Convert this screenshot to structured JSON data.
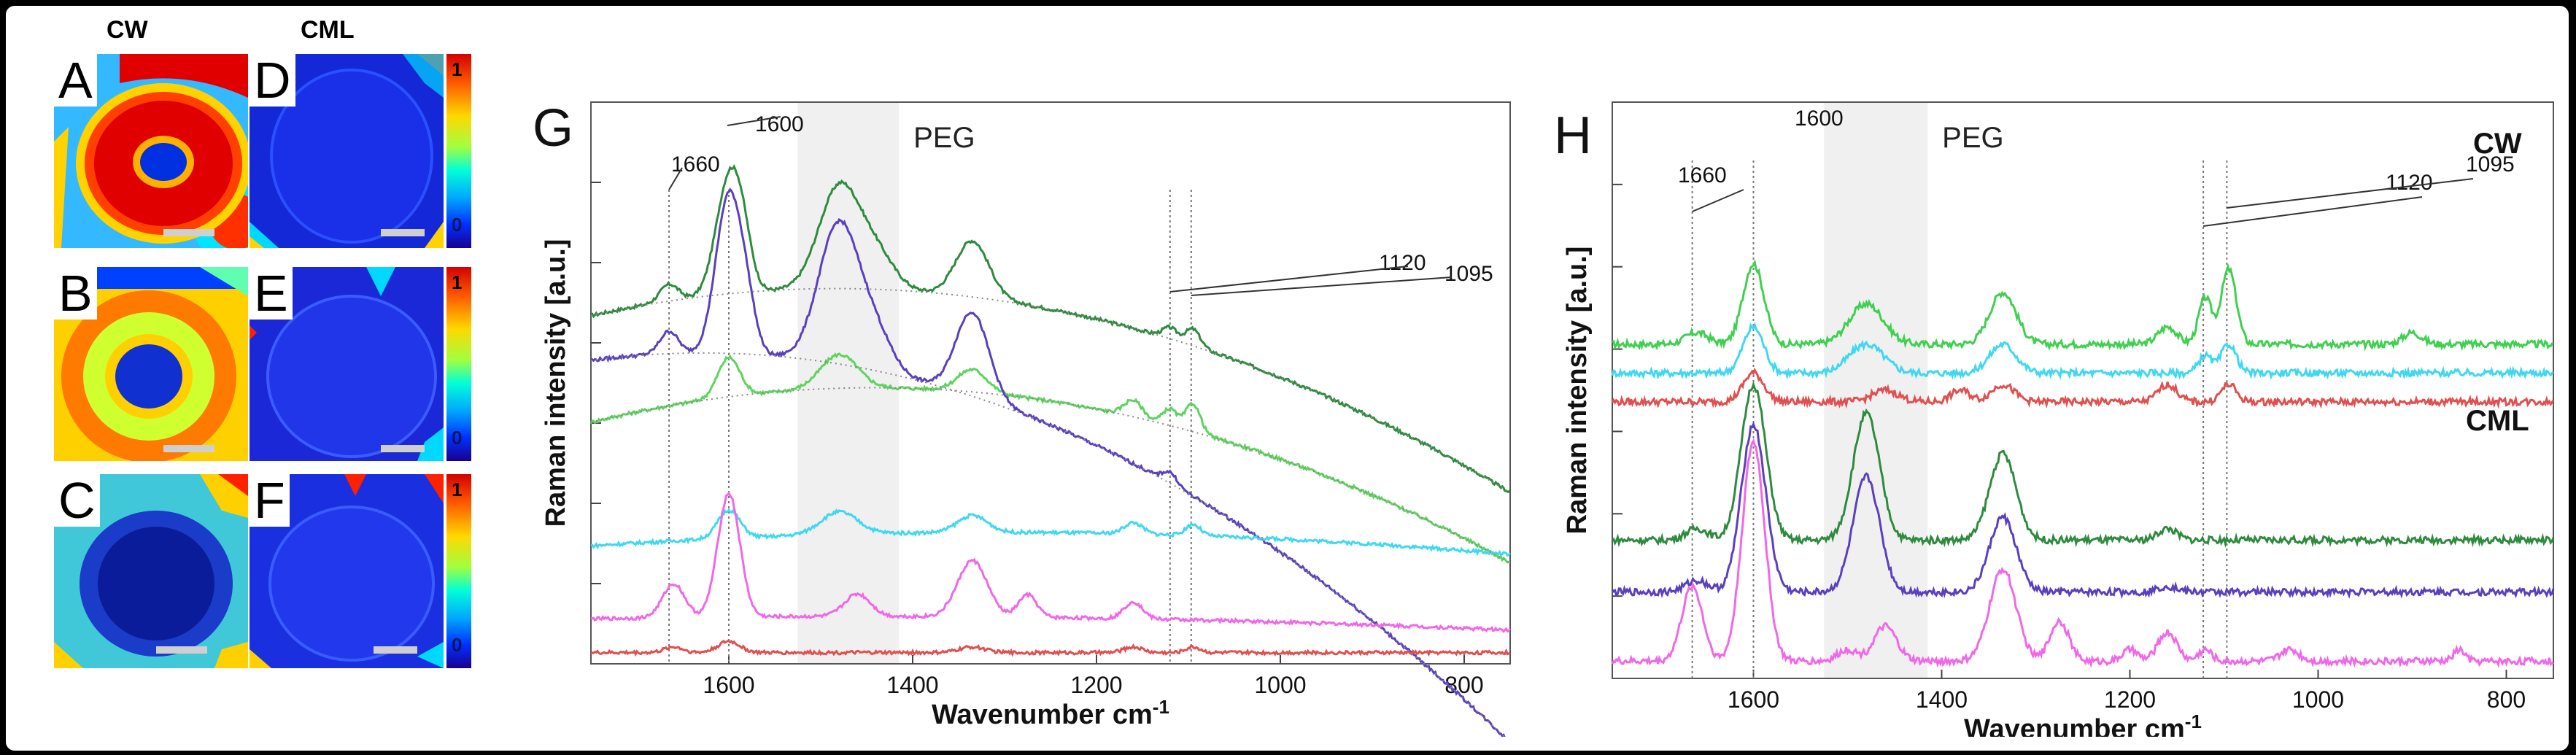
{
  "heatmap_panel": {
    "col_headers": {
      "cw": "CW",
      "cml": "CML"
    },
    "tiles": [
      {
        "letter": "A",
        "description": "CW"
      },
      {
        "letter": "D",
        "description": "CML"
      },
      {
        "letter": "B",
        "description": "CW"
      },
      {
        "letter": "E",
        "description": "CML"
      },
      {
        "letter": "C",
        "description": "CW"
      },
      {
        "letter": "F",
        "description": "CML"
      }
    ],
    "colorbar": {
      "max_label": "1",
      "min_label": "0"
    }
  },
  "chart_data": [
    {
      "type": "line",
      "panel": "G",
      "title": "",
      "xlabel": "Wavenumber cm-1",
      "xlabel_base": "Wavenumber cm",
      "xlabel_exp": "-1",
      "ylabel": "Raman intensity [a.u.]",
      "xlim": [
        1750,
        750
      ],
      "xticks": [
        1600,
        1400,
        1200,
        1000,
        800
      ],
      "band_label": "PEG",
      "band_range": [
        1525,
        1415
      ],
      "markers": [
        {
          "label": "1600",
          "x": 1600
        },
        {
          "label": "1660",
          "x": 1665
        },
        {
          "label": "1120",
          "x": 1120
        },
        {
          "label": "1095",
          "x": 1097
        }
      ],
      "series": [
        {
          "name": "CW green dark",
          "color": "#2e8b3e",
          "base": [
            0.62,
            0.36,
            -1.35
          ],
          "peaks": [
            [
              1665,
              0.03,
              10
            ],
            [
              1600,
              0.2,
              14
            ],
            [
              1585,
              0.06,
              10
            ],
            [
              1480,
              0.18,
              22
            ],
            [
              1440,
              0.06,
              20
            ],
            [
              1335,
              0.1,
              18
            ],
            [
              1120,
              0.02,
              8
            ],
            [
              1095,
              0.03,
              8
            ]
          ]
        },
        {
          "name": "CW green light",
          "color": "#5fd35f",
          "base": [
            0.43,
            0.4,
            -1.3
          ],
          "peaks": [
            [
              1600,
              0.07,
              12
            ],
            [
              1480,
              0.06,
              20
            ],
            [
              1335,
              0.04,
              16
            ],
            [
              1160,
              0.03,
              10
            ],
            [
              1120,
              0.03,
              8
            ],
            [
              1095,
              0.05,
              8
            ]
          ]
        },
        {
          "name": "CML violet",
          "color": "#5a3fbf",
          "base": [
            0.54,
            0.22,
            -1.8
          ],
          "peaks": [
            [
              1665,
              0.04,
              10
            ],
            [
              1600,
              0.28,
              14
            ],
            [
              1580,
              0.06,
              10
            ],
            [
              1480,
              0.25,
              22
            ],
            [
              1440,
              0.06,
              18
            ],
            [
              1335,
              0.15,
              18
            ],
            [
              1120,
              0.02,
              8
            ]
          ]
        },
        {
          "name": "CW cyan",
          "color": "#40d8f0",
          "base": [
            0.21,
            0.11,
            -0.25
          ],
          "peaks": [
            [
              1600,
              0.05,
              12
            ],
            [
              1480,
              0.04,
              20
            ],
            [
              1335,
              0.03,
              16
            ],
            [
              1160,
              0.02,
              10
            ],
            [
              1095,
              0.02,
              8
            ]
          ]
        },
        {
          "name": "CML magenta",
          "color": "#f068e8",
          "base": [
            0.08,
            0.03,
            -0.1
          ],
          "peaks": [
            [
              1660,
              0.06,
              12
            ],
            [
              1600,
              0.22,
              12
            ],
            [
              1460,
              0.04,
              14
            ],
            [
              1335,
              0.1,
              16
            ],
            [
              1275,
              0.04,
              10
            ],
            [
              1160,
              0.03,
              10
            ]
          ]
        },
        {
          "name": "red reference",
          "color": "#e05050",
          "base": [
            0.02,
            0.0,
            0.0
          ],
          "peaks": [
            [
              1660,
              0.01,
              10
            ],
            [
              1600,
              0.02,
              12
            ],
            [
              1335,
              0.01,
              14
            ],
            [
              1160,
              0.01,
              10
            ],
            [
              1095,
              0.01,
              8
            ]
          ]
        }
      ],
      "fit_curves": [
        {
          "for": "CW green dark",
          "base": [
            0.62,
            0.36,
            -1.35
          ]
        },
        {
          "for": "CW green light",
          "base": [
            0.43,
            0.4,
            -1.3
          ]
        },
        {
          "for": "CML violet",
          "base": [
            0.54,
            0.22,
            -1.8
          ]
        }
      ]
    },
    {
      "type": "line",
      "panel": "H",
      "title": "",
      "xlabel": "Wavenumber cm-1",
      "xlabel_base": "Wavenumber cm",
      "xlabel_exp": "-1",
      "ylabel": "Raman intensity [a.u.]",
      "xlim": [
        1750,
        750
      ],
      "xticks": [
        1600,
        1400,
        1200,
        1000,
        800
      ],
      "band_label": "PEG",
      "band_range": [
        1525,
        1415
      ],
      "group_labels": [
        "CW",
        "CML"
      ],
      "markers": [
        {
          "label": "1660",
          "x": 1665
        },
        {
          "label": "1600",
          "x": 1600
        },
        {
          "label": "1120",
          "x": 1122
        },
        {
          "label": "1095",
          "x": 1097
        }
      ],
      "series": [
        {
          "name": "CW green light",
          "group": "CW",
          "color": "#40d050",
          "offset": 0.58,
          "peaks": [
            [
              1660,
              0.02,
              12
            ],
            [
              1600,
              0.14,
              11
            ],
            [
              1480,
              0.07,
              18
            ],
            [
              1335,
              0.09,
              14
            ],
            [
              1160,
              0.03,
              10
            ],
            [
              1120,
              0.08,
              7
            ],
            [
              1095,
              0.13,
              8
            ],
            [
              900,
              0.02,
              10
            ]
          ]
        },
        {
          "name": "CW cyan",
          "group": "CW",
          "color": "#40d8f0",
          "offset": 0.53,
          "peaks": [
            [
              1600,
              0.08,
              11
            ],
            [
              1480,
              0.05,
              18
            ],
            [
              1335,
              0.05,
              14
            ],
            [
              1120,
              0.03,
              7
            ],
            [
              1095,
              0.05,
              8
            ]
          ]
        },
        {
          "name": "CW red",
          "group": "CW",
          "color": "#e05050",
          "offset": 0.48,
          "peaks": [
            [
              1600,
              0.05,
              11
            ],
            [
              1460,
              0.02,
              14
            ],
            [
              1380,
              0.02,
              10
            ],
            [
              1335,
              0.03,
              12
            ],
            [
              1160,
              0.03,
              10
            ],
            [
              1095,
              0.03,
              8
            ]
          ]
        },
        {
          "name": "CML green",
          "group": "CML",
          "color": "#2e8b3e",
          "offset": 0.24,
          "peaks": [
            [
              1660,
              0.02,
              12
            ],
            [
              1600,
              0.27,
              13
            ],
            [
              1480,
              0.22,
              14
            ],
            [
              1335,
              0.15,
              14
            ],
            [
              1160,
              0.02,
              10
            ]
          ]
        },
        {
          "name": "CML violet",
          "group": "CML",
          "color": "#5a3fbf",
          "offset": 0.15,
          "peaks": [
            [
              1660,
              0.02,
              12
            ],
            [
              1600,
              0.29,
              13
            ],
            [
              1480,
              0.2,
              14
            ],
            [
              1335,
              0.13,
              14
            ],
            [
              1160,
              0.01,
              10
            ]
          ]
        },
        {
          "name": "CML magenta",
          "group": "CML",
          "color": "#f068e8",
          "offset": 0.03,
          "peaks": [
            [
              1665,
              0.13,
              11
            ],
            [
              1600,
              0.38,
              12
            ],
            [
              1500,
              0.02,
              10
            ],
            [
              1460,
              0.06,
              12
            ],
            [
              1335,
              0.16,
              14
            ],
            [
              1275,
              0.07,
              10
            ],
            [
              1200,
              0.02,
              8
            ],
            [
              1160,
              0.05,
              10
            ],
            [
              1120,
              0.02,
              7
            ],
            [
              1030,
              0.02,
              10
            ],
            [
              850,
              0.02,
              6
            ]
          ]
        }
      ]
    }
  ]
}
